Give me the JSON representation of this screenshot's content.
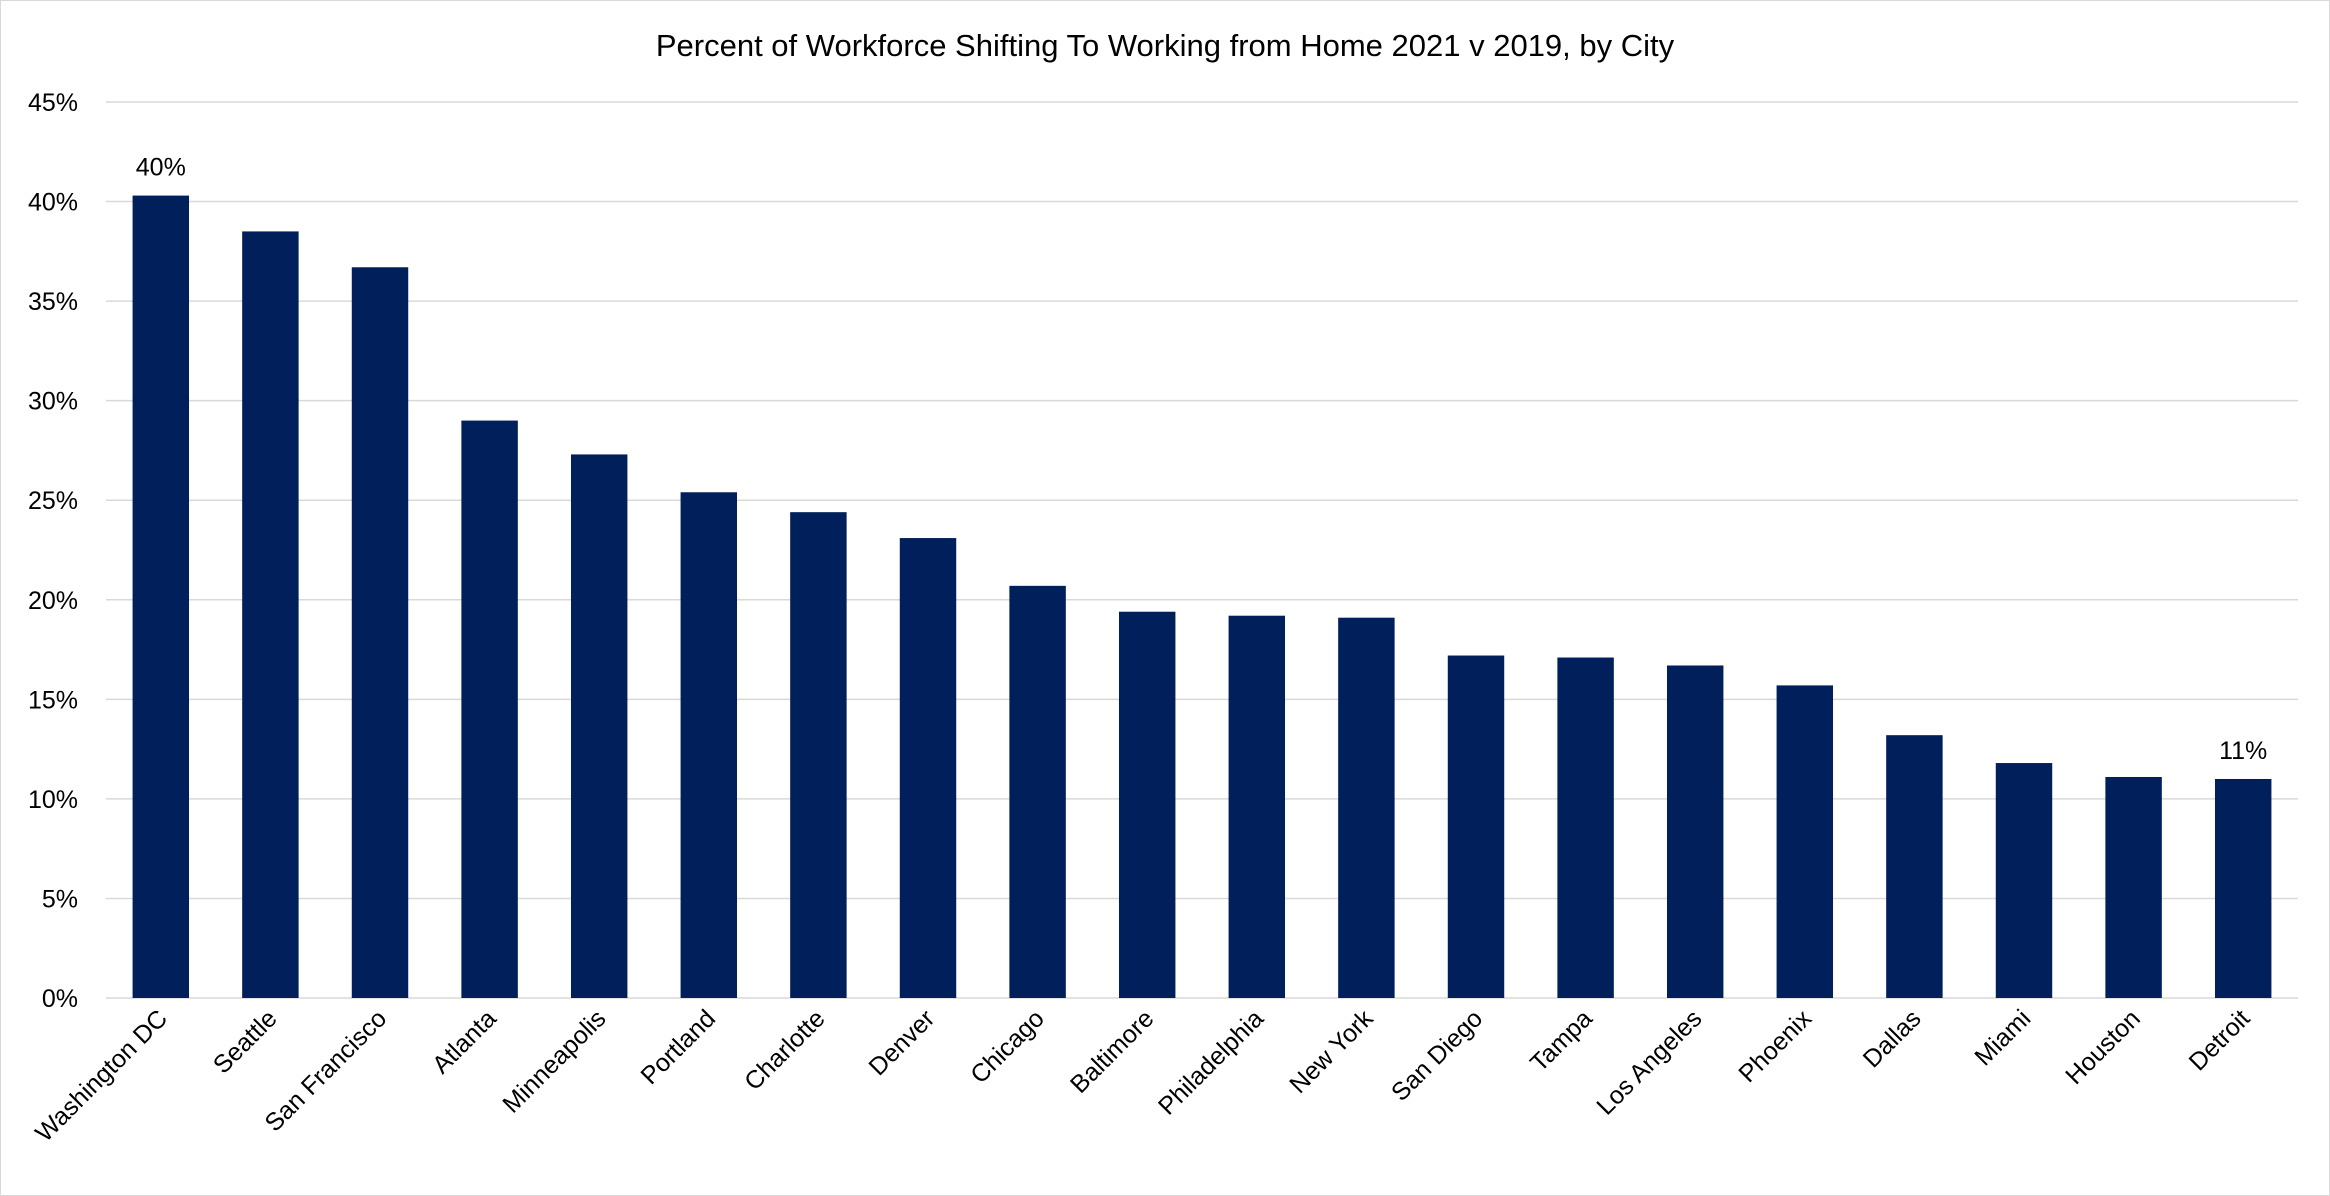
{
  "chart_data": {
    "type": "bar",
    "title": "Percent of Workforce Shifting To Working from Home 2021 v 2019, by City",
    "xlabel": "",
    "ylabel": "",
    "ylim": [
      0,
      45
    ],
    "y_ticks": [
      "0%",
      "5%",
      "10%",
      "15%",
      "20%",
      "25%",
      "30%",
      "35%",
      "40%",
      "45%"
    ],
    "grid": "horizontal",
    "bar_color": "#001f5b",
    "categories": [
      "Washington DC",
      "Seattle",
      "San Francisco",
      "Atlanta",
      "Minneapolis",
      "Portland",
      "Charlotte",
      "Denver",
      "Chicago",
      "Baltimore",
      "Philadelphia",
      "New York",
      "San Diego",
      "Tampa",
      "Los Angeles",
      "Phoenix",
      "Dallas",
      "Miami",
      "Houston",
      "Detroit"
    ],
    "values": [
      40.3,
      38.5,
      36.7,
      29.0,
      27.3,
      25.4,
      24.4,
      23.1,
      20.7,
      19.4,
      19.2,
      19.1,
      17.2,
      17.1,
      16.7,
      15.7,
      13.2,
      11.8,
      11.1,
      11.0
    ],
    "data_labels": [
      {
        "category": "Washington DC",
        "text": "40%"
      },
      {
        "category": "Detroit",
        "text": "11%"
      }
    ]
  }
}
